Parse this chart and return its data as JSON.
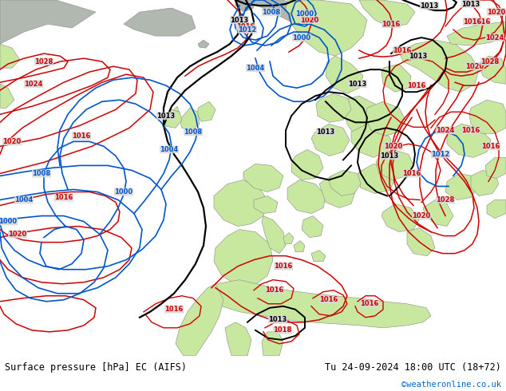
{
  "title_left": "Surface pressure [hPa] EC (AIFS)",
  "title_right": "Tu 24-09-2024 18:00 UTC (18+72)",
  "credit": "©weatheronline.co.uk",
  "land_color": "#c8e8a0",
  "sea_color": "#d8d8d8",
  "greenland_color": "#b0b8b0",
  "fig_width": 6.34,
  "fig_height": 4.9,
  "dpi": 100,
  "red": "#cc0000",
  "blue": "#0055cc",
  "black": "#000000"
}
